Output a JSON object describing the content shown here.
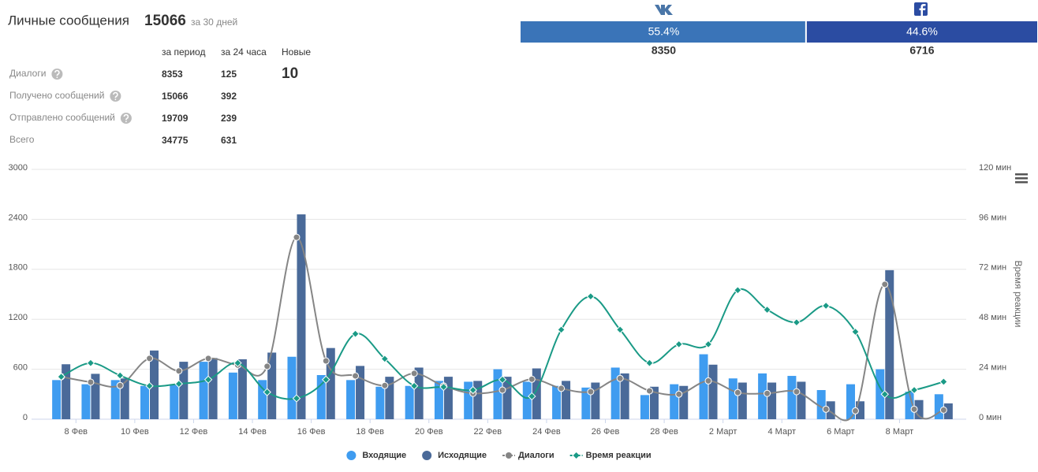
{
  "summary": {
    "title": "Личные сообщения",
    "total": 15066,
    "period": "за 30 дней",
    "columns": [
      "за период",
      "за 24 часа",
      "Новые"
    ],
    "rows": [
      {
        "label": "Диалоги",
        "help": true,
        "period": 8353,
        "day": 125,
        "new": 10
      },
      {
        "label": "Получено сообщений",
        "help": true,
        "period": 15066,
        "day": 392
      },
      {
        "label": "Отправлено сообщений",
        "help": true,
        "period": 19709,
        "day": 239
      },
      {
        "label": "Всего",
        "help": false,
        "period": 34775,
        "day": 631
      }
    ]
  },
  "sources": [
    {
      "share": {
        "value": 55.4,
        "label": "55.4%"
      },
      "count": 8350,
      "color": "#3a74b8"
    },
    {
      "share": {
        "value": 44.6,
        "label": "44.6%"
      },
      "count": 6716,
      "color": "#2b4ca2"
    }
  ],
  "chart_data": {
    "type": "combo",
    "categories": [
      null,
      "8 Фев",
      null,
      "10 Фев",
      null,
      "12 Фев",
      null,
      "14 Фев",
      null,
      "16 Фев",
      null,
      "18 Фев",
      null,
      "20 Фев",
      null,
      "22 Фев",
      null,
      "24 Фев",
      null,
      "26 Фев",
      null,
      "28 Фев",
      null,
      "2 Март",
      null,
      "4 Март",
      null,
      "6 Март",
      null,
      "8 Март",
      null
    ],
    "series": [
      {
        "name": "Входящие",
        "type": "bar",
        "color": "#3f9cf0",
        "values": [
          470,
          420,
          470,
          400,
          420,
          690,
          560,
          470,
          750,
          530,
          470,
          390,
          400,
          460,
          450,
          600,
          450,
          400,
          380,
          620,
          290,
          420,
          780,
          490,
          550,
          520,
          350,
          420,
          600,
          330,
          300
        ]
      },
      {
        "name": "Исходящие",
        "type": "bar",
        "color": "#4a6a99",
        "values": [
          660,
          545,
          490,
          825,
          690,
          735,
          720,
          800,
          2460,
          855,
          640,
          510,
          620,
          510,
          460,
          510,
          610,
          460,
          440,
          550,
          390,
          400,
          655,
          440,
          440,
          450,
          215,
          215,
          1790,
          230,
          190
        ]
      },
      {
        "name": "Диалоги",
        "type": "line",
        "marker": "circle",
        "color": "#858585",
        "values": [
          510,
          445,
          405,
          730,
          580,
          730,
          650,
          635,
          2185,
          700,
          520,
          405,
          550,
          400,
          310,
          350,
          480,
          370,
          330,
          490,
          340,
          300,
          460,
          320,
          310,
          330,
          120,
          100,
          1620,
          120,
          110
        ]
      },
      {
        "name": "Время реакции",
        "type": "line",
        "marker": "diamond",
        "axis": "y2",
        "color": "#1a9a86",
        "values": [
          20.4,
          27,
          21,
          16,
          17,
          19,
          27,
          13,
          10,
          19,
          41,
          29,
          16,
          15.5,
          14,
          19,
          11,
          43,
          59,
          43,
          27,
          36,
          36,
          62,
          52.6,
          46.5,
          54.5,
          42,
          12,
          14,
          18
        ]
      }
    ],
    "ylim": [
      0,
      3000
    ],
    "yticks": [
      0,
      600,
      1200,
      1800,
      2400,
      3000
    ],
    "y2lim": [
      0,
      120
    ],
    "y2ticks": [
      {
        "value": 0,
        "label": "0 мин"
      },
      {
        "value": 24,
        "label": "24 мин"
      },
      {
        "value": 48,
        "label": "48 мин"
      },
      {
        "value": 72,
        "label": "72 мин"
      },
      {
        "value": 96,
        "label": "96 мин"
      },
      {
        "value": 120,
        "label": "120 мин"
      }
    ],
    "y2label": "Время реакции",
    "grid": true,
    "legend": "bottom"
  }
}
